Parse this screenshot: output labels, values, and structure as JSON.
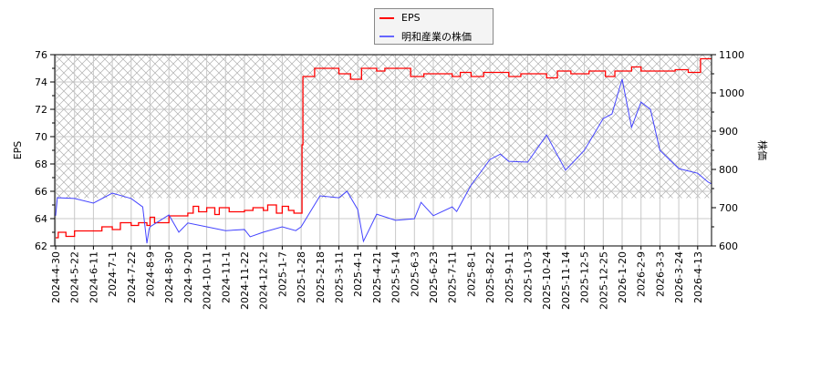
{
  "legend": {
    "eps": "EPS",
    "price": "明和産業の株価"
  },
  "colors": {
    "eps": "#ff0000",
    "price": "#4444ff",
    "grid": "#c8c8c8",
    "hatch": "#b0b0b0"
  },
  "chart_data": {
    "type": "line",
    "xlabel": "",
    "ylabel_left": "EPS",
    "ylabel_right": "株価",
    "ylim_left": [
      62,
      76
    ],
    "ylim_right": [
      600,
      1100
    ],
    "yticks_left": [
      "62",
      "64",
      "66",
      "68",
      "70",
      "72",
      "74",
      "76"
    ],
    "yticks_right": [
      "600",
      "700",
      "800",
      "900",
      "1000",
      "1100"
    ],
    "grid": true,
    "legend_position": "top-center",
    "shaded_band_right_axis": [
      725,
      1100
    ],
    "x_tick_labels": [
      "2024-4-30",
      "2024-5-22",
      "2024-6-11",
      "2024-7-1",
      "2024-7-22",
      "2024-8-9",
      "2024-8-30",
      "2024-9-20",
      "2024-10-11",
      "2024-11-1",
      "2024-11-22",
      "2024-12-12",
      "2025-1-7",
      "2025-1-28",
      "2025-2-18",
      "2025-3-11",
      "2025-4-1",
      "2025-4-21",
      "2025-5-14",
      "2025-6-3",
      "2025-6-23",
      "2025-7-11",
      "2025-8-1",
      "2025-8-22",
      "2025-9-11",
      "2025-10-3",
      "2025-10-24",
      "2025-11-14",
      "2025-12-5",
      "2025-12-25",
      "2026-1-20",
      "2026-2-9",
      "2026-3-3",
      "2026-3-24",
      "2026-4-13"
    ],
    "series": [
      {
        "name": "EPS",
        "axis": "left",
        "step": true,
        "points": [
          [
            "2024-4-30",
            62.6
          ],
          [
            "2024-5-3",
            63.0
          ],
          [
            "2024-5-12",
            62.7
          ],
          [
            "2024-5-22",
            63.1
          ],
          [
            "2024-6-20",
            63.4
          ],
          [
            "2024-7-1",
            63.2
          ],
          [
            "2024-7-10",
            63.7
          ],
          [
            "2024-7-22",
            63.5
          ],
          [
            "2024-7-29",
            63.7
          ],
          [
            "2024-8-6",
            63.5
          ],
          [
            "2024-8-9",
            64.1
          ],
          [
            "2024-8-14",
            63.7
          ],
          [
            "2024-8-30",
            64.2
          ],
          [
            "2024-9-20",
            64.4
          ],
          [
            "2024-9-26",
            64.9
          ],
          [
            "2024-10-2",
            64.5
          ],
          [
            "2024-10-11",
            64.8
          ],
          [
            "2024-10-20",
            64.3
          ],
          [
            "2024-10-25",
            64.8
          ],
          [
            "2024-11-5",
            64.5
          ],
          [
            "2024-11-22",
            64.6
          ],
          [
            "2024-12-1",
            64.8
          ],
          [
            "2024-12-12",
            64.6
          ],
          [
            "2024-12-18",
            65.0
          ],
          [
            "2024-12-30",
            64.4
          ],
          [
            "2025-1-7",
            64.9
          ],
          [
            "2025-1-14",
            64.6
          ],
          [
            "2025-1-20",
            64.4
          ],
          [
            "2025-1-29",
            69.4
          ],
          [
            "2025-1-30",
            74.4
          ],
          [
            "2025-2-12",
            75.0
          ],
          [
            "2025-3-11",
            74.6
          ],
          [
            "2025-3-24",
            74.2
          ],
          [
            "2025-4-5",
            75.0
          ],
          [
            "2025-4-21",
            74.8
          ],
          [
            "2025-5-1",
            75.0
          ],
          [
            "2025-5-30",
            74.4
          ],
          [
            "2025-6-13",
            74.6
          ],
          [
            "2025-7-11",
            74.4
          ],
          [
            "2025-7-20",
            74.7
          ],
          [
            "2025-8-1",
            74.4
          ],
          [
            "2025-8-15",
            74.7
          ],
          [
            "2025-9-11",
            74.4
          ],
          [
            "2025-9-25",
            74.6
          ],
          [
            "2025-10-24",
            74.3
          ],
          [
            "2025-11-5",
            74.8
          ],
          [
            "2025-11-20",
            74.6
          ],
          [
            "2025-12-10",
            74.8
          ],
          [
            "2025-12-28",
            74.4
          ],
          [
            "2026-1-10",
            74.8
          ],
          [
            "2026-1-30",
            75.1
          ],
          [
            "2026-2-9",
            74.8
          ],
          [
            "2026-3-3",
            74.8
          ],
          [
            "2026-3-20",
            74.9
          ],
          [
            "2026-4-3",
            74.7
          ],
          [
            "2026-4-16",
            75.7
          ],
          [
            "2026-4-24",
            75.7
          ]
        ]
      },
      {
        "name": "明和産業の株価",
        "axis": "right",
        "step": false,
        "points": [
          [
            "2024-4-30",
            679
          ],
          [
            "2024-5-2",
            726
          ],
          [
            "2024-5-22",
            724
          ],
          [
            "2024-6-11",
            712
          ],
          [
            "2024-7-1",
            738
          ],
          [
            "2024-7-22",
            724
          ],
          [
            "2024-8-2",
            702
          ],
          [
            "2024-8-6",
            607
          ],
          [
            "2024-8-8",
            643
          ],
          [
            "2024-8-9",
            650
          ],
          [
            "2024-8-30",
            681
          ],
          [
            "2024-9-10",
            636
          ],
          [
            "2024-9-20",
            660
          ],
          [
            "2024-10-11",
            650
          ],
          [
            "2024-11-1",
            640
          ],
          [
            "2024-11-22",
            643
          ],
          [
            "2024-11-28",
            624
          ],
          [
            "2024-12-12",
            636
          ],
          [
            "2025-1-7",
            650
          ],
          [
            "2025-1-22",
            640
          ],
          [
            "2025-1-28",
            650
          ],
          [
            "2025-2-18",
            731
          ],
          [
            "2025-3-11",
            726
          ],
          [
            "2025-3-20",
            743
          ],
          [
            "2025-4-1",
            695
          ],
          [
            "2025-4-7",
            612
          ],
          [
            "2025-4-21",
            683
          ],
          [
            "2025-5-14",
            667
          ],
          [
            "2025-6-3",
            671
          ],
          [
            "2025-6-10",
            714
          ],
          [
            "2025-6-23",
            679
          ],
          [
            "2025-7-11",
            702
          ],
          [
            "2025-7-16",
            690
          ],
          [
            "2025-8-1",
            759
          ],
          [
            "2025-8-22",
            826
          ],
          [
            "2025-9-2",
            840
          ],
          [
            "2025-9-11",
            821
          ],
          [
            "2025-10-3",
            819
          ],
          [
            "2025-10-24",
            890
          ],
          [
            "2025-11-14",
            798
          ],
          [
            "2025-12-5",
            850
          ],
          [
            "2025-12-25",
            933
          ],
          [
            "2026-1-6",
            945
          ],
          [
            "2026-1-20",
            1036
          ],
          [
            "2026-1-30",
            910
          ],
          [
            "2026-2-9",
            976
          ],
          [
            "2026-2-20",
            957
          ],
          [
            "2026-3-3",
            850
          ],
          [
            "2026-3-24",
            802
          ],
          [
            "2026-4-13",
            790
          ],
          [
            "2026-4-24",
            767
          ]
        ]
      }
    ]
  }
}
